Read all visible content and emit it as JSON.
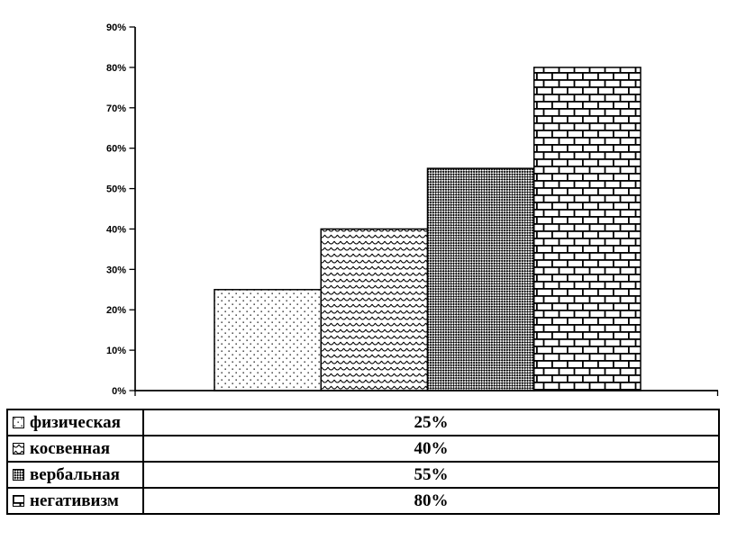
{
  "chart_data": {
    "type": "bar",
    "categories": [
      "физическая",
      "косвенная",
      "вербальная",
      "негативизм"
    ],
    "values": [
      25,
      40,
      55,
      80
    ],
    "value_labels": [
      "25%",
      "40%",
      "55%",
      "80%"
    ],
    "title": "",
    "xlabel": "",
    "ylabel": "",
    "ylim": [
      0,
      90
    ],
    "y_ticks": [
      "0%",
      "10%",
      "20%",
      "30%",
      "40%",
      "50%",
      "60%",
      "70%",
      "80%",
      "90%"
    ],
    "y_tick_values": [
      0,
      10,
      20,
      30,
      40,
      50,
      60,
      70,
      80,
      90
    ],
    "grid": false,
    "legend_position": "bottom-table",
    "patterns": [
      "dots",
      "scales",
      "diamond-check",
      "bricks"
    ],
    "bar_fill_style": "black-and-white-hatch-patterns",
    "colors": {
      "foreground": "#000000",
      "background": "#ffffff"
    }
  },
  "legend_table": {
    "rows": [
      {
        "label": "физическая",
        "value": "25%",
        "pattern": "dots"
      },
      {
        "label": "косвенная",
        "value": "40%",
        "pattern": "scales"
      },
      {
        "label": "вербальная",
        "value": "55%",
        "pattern": "diamond-check"
      },
      {
        "label": "негативизм",
        "value": "80%",
        "pattern": "bricks"
      }
    ]
  }
}
